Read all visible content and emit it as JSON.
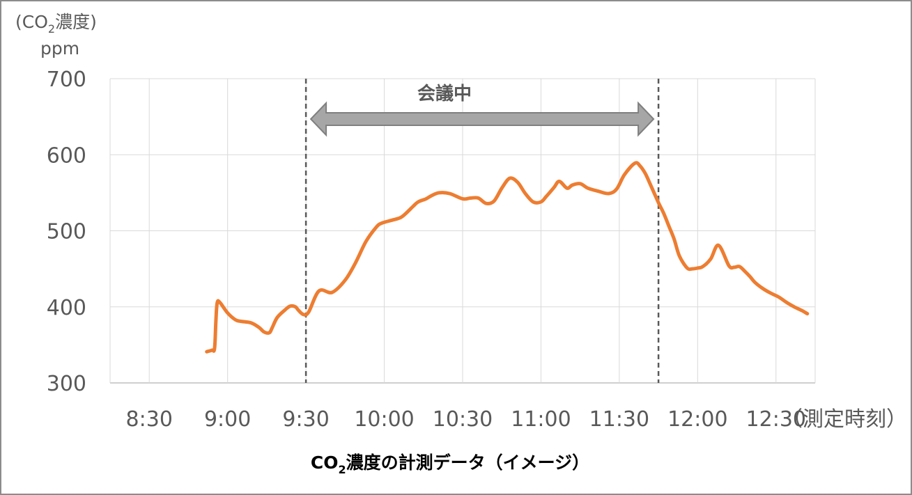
{
  "chart_data": {
    "type": "line",
    "title": "",
    "caption": {
      "main": "CO",
      "sub": "2",
      "rest": "濃度の計測データ（イメージ）"
    },
    "y_unit_label": {
      "prefix": "(CO",
      "sub": "2",
      "suffix": "濃度)",
      "unit": "ppm"
    },
    "xlabel": "（測定時刻）",
    "ylim": [
      300,
      700
    ],
    "y_ticks": [
      "300",
      "400",
      "500",
      "600",
      "700"
    ],
    "x_ticks": [
      "8:30",
      "9:00",
      "9:30",
      "10:00",
      "10:30",
      "11:00",
      "11:30",
      "12:00",
      "12:30"
    ],
    "x_tick_minutes": [
      510,
      540,
      570,
      600,
      630,
      660,
      690,
      720,
      750
    ],
    "xlim_minutes": [
      495,
      765
    ],
    "grid": true,
    "series": [
      {
        "color": "#ed7d31",
        "x_minutes": [
          532,
          534,
          535,
          535.5,
          536,
          537,
          540,
          543,
          545,
          549,
          552,
          554,
          556,
          557,
          559,
          562,
          564,
          566,
          567,
          569,
          571,
          575,
          580,
          585,
          589,
          593,
          597,
          599,
          603,
          606,
          608,
          611,
          613,
          616,
          618,
          621,
          625,
          630,
          633,
          636,
          639,
          642,
          645,
          648,
          651,
          654,
          657,
          660,
          662,
          665,
          667,
          670,
          672,
          675,
          678,
          682,
          686,
          689,
          692,
          696,
          698,
          700,
          702,
          705,
          707,
          709,
          711,
          713,
          716,
          718,
          720,
          722,
          725,
          728,
          732,
          734,
          736,
          738,
          740,
          742,
          745,
          748,
          751,
          754,
          757,
          760,
          762
        ],
        "y": [
          341,
          343,
          345,
          380,
          405,
          406,
          392,
          383,
          381,
          379,
          373,
          367,
          366,
          372,
          386,
          396,
          401,
          400,
          396,
          390,
          393,
          421,
          419,
          435,
          458,
          486,
          505,
          510,
          514,
          517,
          522,
          532,
          538,
          542,
          546,
          550,
          549,
          542,
          543,
          543,
          536,
          539,
          556,
          569,
          564,
          549,
          538,
          538,
          545,
          557,
          565,
          556,
          560,
          562,
          556,
          552,
          549,
          555,
          574,
          589,
          585,
          575,
          560,
          537,
          523,
          506,
          489,
          467,
          451,
          450,
          451,
          453,
          463,
          481,
          454,
          452,
          453,
          447,
          440,
          432,
          424,
          418,
          413,
          406,
          400,
          395,
          391
        ]
      }
    ],
    "annotation": {
      "label": "会議中",
      "start_minutes": 570,
      "end_minutes": 705
    }
  }
}
